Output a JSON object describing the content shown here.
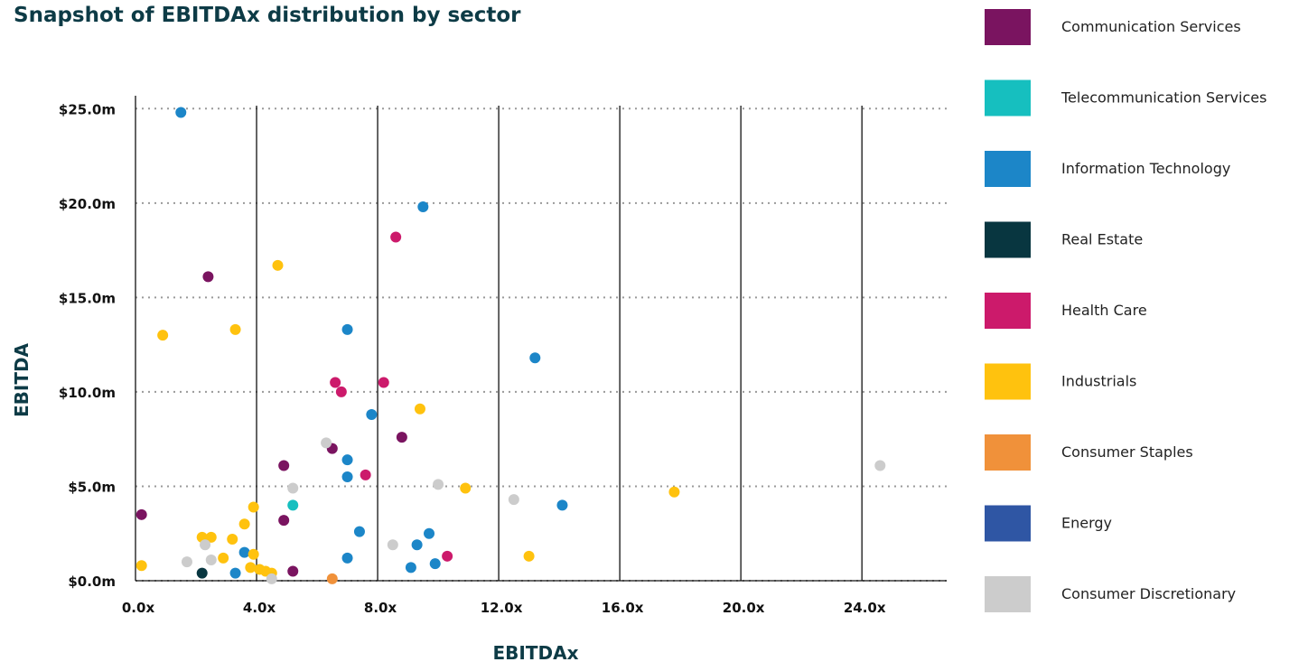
{
  "chart_data": {
    "type": "scatter",
    "title": "Snapshot of EBITDAx distribution by sector",
    "xlabel": "EBITDAx",
    "ylabel": "EBITDA",
    "xlim": [
      0,
      26.8
    ],
    "ylim": [
      0,
      25.3
    ],
    "x_ticks": [
      0,
      4,
      8,
      12,
      16,
      20,
      24
    ],
    "x_tick_labels": [
      "0.0x",
      "4.0x",
      "8.0x",
      "12.0x",
      "16.0x",
      "20.0x",
      "24.0x"
    ],
    "y_ticks": [
      0,
      5,
      10,
      15,
      20,
      25
    ],
    "y_tick_labels": [
      "$0.0m",
      "$5.0m",
      "$10.0m",
      "$15.0m",
      "$20.0m",
      "$25.0m"
    ],
    "grid": {
      "x": "solid vertical",
      "y": "dotted horizontal"
    },
    "legend_position": "right",
    "series": [
      {
        "name": "Communication Services",
        "color": "#7a1460",
        "points": [
          [
            0.2,
            3.5
          ],
          [
            2.4,
            16.1
          ],
          [
            4.9,
            6.1
          ],
          [
            4.9,
            3.2
          ],
          [
            5.2,
            0.5
          ],
          [
            6.5,
            7.0
          ],
          [
            8.8,
            7.6
          ]
        ]
      },
      {
        "name": "Telecommunication Services",
        "color": "#16bfbf",
        "points": [
          [
            5.2,
            4.0
          ]
        ]
      },
      {
        "name": "Information Technology",
        "color": "#1c86c8",
        "points": [
          [
            1.5,
            24.8
          ],
          [
            3.3,
            0.4
          ],
          [
            3.6,
            1.5
          ],
          [
            7.0,
            13.3
          ],
          [
            7.0,
            6.4
          ],
          [
            7.0,
            5.5
          ],
          [
            7.0,
            1.2
          ],
          [
            7.4,
            2.6
          ],
          [
            7.8,
            8.8
          ],
          [
            9.1,
            0.7
          ],
          [
            9.3,
            1.9
          ],
          [
            9.5,
            19.8
          ],
          [
            9.7,
            2.5
          ],
          [
            9.9,
            0.9
          ],
          [
            13.2,
            11.8
          ],
          [
            14.1,
            4.0
          ]
        ]
      },
      {
        "name": "Real Estate",
        "color": "#083640",
        "points": [
          [
            2.2,
            0.4
          ]
        ]
      },
      {
        "name": "Health Care",
        "color": "#cc1a6b",
        "points": [
          [
            6.6,
            10.5
          ],
          [
            6.8,
            10.0
          ],
          [
            7.6,
            5.6
          ],
          [
            8.2,
            10.5
          ],
          [
            8.6,
            18.2
          ],
          [
            10.3,
            1.3
          ]
        ]
      },
      {
        "name": "Industrials",
        "color": "#ffc20e",
        "points": [
          [
            0.2,
            0.8
          ],
          [
            0.9,
            13.0
          ],
          [
            2.2,
            2.3
          ],
          [
            2.5,
            2.3
          ],
          [
            2.9,
            1.2
          ],
          [
            3.2,
            2.2
          ],
          [
            3.3,
            13.3
          ],
          [
            3.6,
            3.0
          ],
          [
            3.8,
            0.7
          ],
          [
            3.9,
            1.4
          ],
          [
            3.9,
            3.9
          ],
          [
            4.1,
            0.6
          ],
          [
            4.3,
            0.5
          ],
          [
            4.5,
            0.4
          ],
          [
            4.7,
            16.7
          ],
          [
            9.4,
            9.1
          ],
          [
            10.9,
            4.9
          ],
          [
            13.0,
            1.3
          ],
          [
            17.8,
            4.7
          ]
        ]
      },
      {
        "name": "Consumer Staples",
        "color": "#f0913a",
        "points": [
          [
            6.5,
            0.1
          ]
        ]
      },
      {
        "name": "Energy",
        "color": "#2f56a4",
        "points": []
      },
      {
        "name": "Consumer Discretionary",
        "color": "#cccccc",
        "points": [
          [
            1.7,
            1.0
          ],
          [
            2.3,
            1.9
          ],
          [
            2.5,
            1.1
          ],
          [
            4.5,
            0.1
          ],
          [
            5.2,
            4.9
          ],
          [
            6.3,
            7.3
          ],
          [
            8.5,
            1.9
          ],
          [
            10.0,
            5.1
          ],
          [
            12.5,
            4.3
          ],
          [
            24.6,
            6.1
          ]
        ]
      }
    ]
  }
}
